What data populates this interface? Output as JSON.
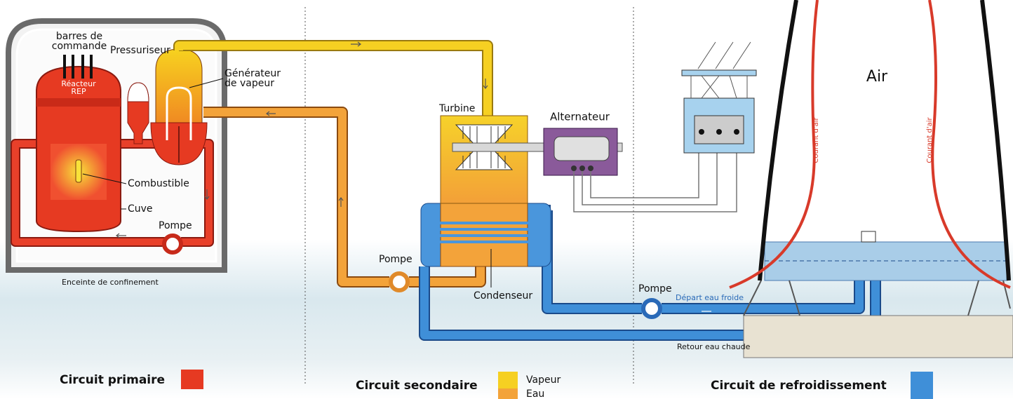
{
  "labels": {
    "control_rods": [
      "barres de",
      "commande"
    ],
    "pressurizer": "Pressuriseur",
    "reactor": [
      "Réacteur",
      "REP"
    ],
    "steam_generator": [
      "Générateur",
      "de vapeur"
    ],
    "fuel": "Combustible",
    "vessel": "Cuve",
    "primary_pump": "Pompe",
    "containment": "Enceinte de confinement",
    "turbine": "Turbine",
    "alternator": "Alternateur",
    "secondary_pump": "Pompe",
    "condenser": "Condenseur",
    "cooling_pump": "Pompe",
    "cold_water": "Départ eau froide",
    "hot_water": "Retour eau chaude",
    "air": "Air",
    "airflow": [
      "Courant d'air",
      "Courant d'air"
    ]
  },
  "legend": [
    {
      "label": "Circuit primaire"
    },
    {
      "label": "Circuit secondaire",
      "items": [
        "Vapeur",
        "Eau"
      ]
    },
    {
      "label": "Circuit de refroidissement"
    }
  ]
}
